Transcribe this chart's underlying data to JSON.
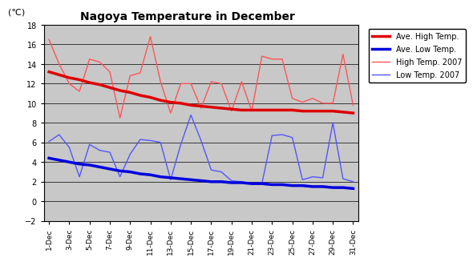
{
  "title": "Nagoya Temperature in December",
  "ylabel": "(℃)",
  "ylim": [
    -2,
    18
  ],
  "yticks": [
    -2,
    0,
    2,
    4,
    6,
    8,
    10,
    12,
    14,
    16,
    18
  ],
  "x_labels": [
    "1-Dec",
    "3-Dec",
    "5-Dec",
    "7-Dec",
    "9-Dec",
    "11-Dec",
    "13-Dec",
    "15-Dec",
    "17-Dec",
    "19-Dec",
    "21-Dec",
    "23-Dec",
    "25-Dec",
    "27-Dec",
    "29-Dec",
    "31-Dec"
  ],
  "days": [
    1,
    2,
    3,
    4,
    5,
    6,
    7,
    8,
    9,
    10,
    11,
    12,
    13,
    14,
    15,
    16,
    17,
    18,
    19,
    20,
    21,
    22,
    23,
    24,
    25,
    26,
    27,
    28,
    29,
    30,
    31
  ],
  "high_2007": [
    16.5,
    14.0,
    12.0,
    11.2,
    14.5,
    14.2,
    13.2,
    8.5,
    12.8,
    13.1,
    16.8,
    12.2,
    9.0,
    12.0,
    12.0,
    9.5,
    12.2,
    12.0,
    9.2,
    12.2,
    9.2,
    14.8,
    14.5,
    14.5,
    10.5,
    10.1,
    10.5,
    10.0,
    10.0,
    15.0,
    9.8
  ],
  "low_2007": [
    6.1,
    6.8,
    5.5,
    2.5,
    5.8,
    5.2,
    5.0,
    2.5,
    4.8,
    6.3,
    6.2,
    6.0,
    2.2,
    5.8,
    8.8,
    6.2,
    3.2,
    3.0,
    2.1,
    2.0,
    1.8,
    1.8,
    6.7,
    6.8,
    6.5,
    2.2,
    2.5,
    2.4,
    8.0,
    2.3,
    2.0
  ],
  "ave_high": [
    13.2,
    12.9,
    12.6,
    12.4,
    12.1,
    11.9,
    11.6,
    11.3,
    11.1,
    10.8,
    10.6,
    10.3,
    10.1,
    10.0,
    9.8,
    9.7,
    9.6,
    9.5,
    9.4,
    9.3,
    9.3,
    9.3,
    9.3,
    9.3,
    9.3,
    9.2,
    9.2,
    9.2,
    9.2,
    9.1,
    9.0
  ],
  "ave_low": [
    4.4,
    4.2,
    4.0,
    3.8,
    3.7,
    3.5,
    3.3,
    3.1,
    3.0,
    2.8,
    2.7,
    2.5,
    2.4,
    2.3,
    2.2,
    2.1,
    2.0,
    2.0,
    1.9,
    1.9,
    1.8,
    1.8,
    1.7,
    1.7,
    1.6,
    1.6,
    1.5,
    1.5,
    1.4,
    1.4,
    1.3
  ],
  "ave_high_color": "#dd0000",
  "ave_low_color": "#0000dd",
  "high_2007_color": "#ff5555",
  "low_2007_color": "#5555ff",
  "bg_color": "#c8c8c8",
  "fig_color": "#ffffff",
  "legend_labels": [
    "Ave. High Temp.",
    "Ave. Low Temp.",
    "High Temp. 2007",
    "Low Temp. 2007"
  ],
  "ave_high_lw": 2.5,
  "ave_low_lw": 2.5,
  "high_2007_lw": 1.0,
  "low_2007_lw": 1.0
}
